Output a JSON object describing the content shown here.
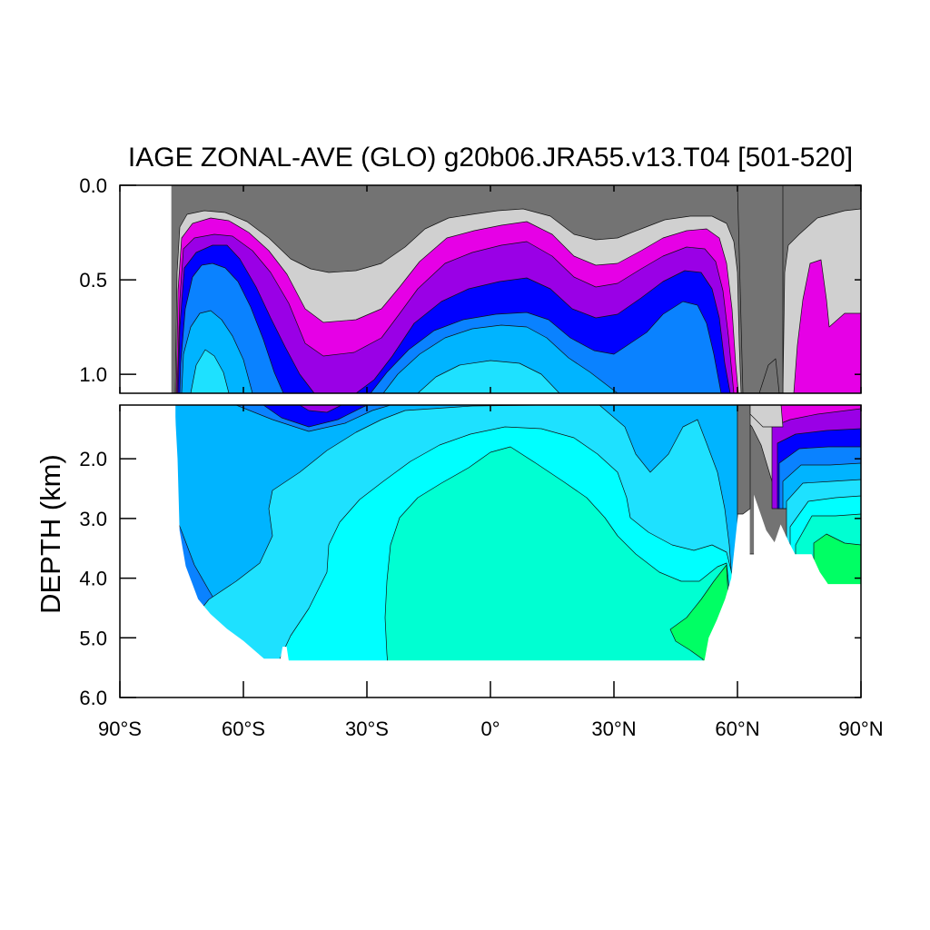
{
  "chart_data": {
    "type": "heatmap",
    "title": "IAGE ZONAL-AVE (GLO) g20b06.JRA55.v13.T04 [501-520]",
    "ylabel": "DEPTH (km)",
    "xlabel": "",
    "xlim": [
      -90,
      90
    ],
    "ylim_upper": [
      0.0,
      1.1
    ],
    "ylim_lower": [
      1.1,
      6.0
    ],
    "x_ticks": [
      {
        "value": -90,
        "label": "90°S"
      },
      {
        "value": -60,
        "label": "60°S"
      },
      {
        "value": -30,
        "label": "30°S"
      },
      {
        "value": 0,
        "label": "0°"
      },
      {
        "value": 30,
        "label": "30°N"
      },
      {
        "value": 60,
        "label": "60°N"
      },
      {
        "value": 90,
        "label": "90°N"
      }
    ],
    "y_ticks_upper": [
      {
        "value": 0.0,
        "label": "0.0"
      },
      {
        "value": 0.5,
        "label": "0.5"
      },
      {
        "value": 1.0,
        "label": "1.0"
      }
    ],
    "y_ticks_lower": [
      {
        "value": 2.0,
        "label": "2.0"
      },
      {
        "value": 3.0,
        "label": "3.0"
      },
      {
        "value": 4.0,
        "label": "4.0"
      },
      {
        "value": 5.0,
        "label": "5.0"
      },
      {
        "value": 6.0,
        "label": "6.0"
      }
    ],
    "levels": [
      {
        "color": "#737373"
      },
      {
        "color": "#d0d0d0"
      },
      {
        "color": "#e600e6"
      },
      {
        "color": "#9a00e6"
      },
      {
        "color": "#0000ff"
      },
      {
        "color": "#0a82ff"
      },
      {
        "color": "#00b4ff"
      },
      {
        "color": "#1ee1ff"
      },
      {
        "color": "#00ffff"
      },
      {
        "color": "#00ffd2"
      },
      {
        "color": "#00ff64"
      }
    ],
    "bottom_profile": [
      {
        "lat": -77,
        "depth": 0.7
      },
      {
        "lat": -76,
        "depth": 2.0
      },
      {
        "lat": -75.5,
        "depth": 3.2
      },
      {
        "lat": -74,
        "depth": 3.8
      },
      {
        "lat": -71,
        "depth": 4.35
      },
      {
        "lat": -68,
        "depth": 4.6
      },
      {
        "lat": -64,
        "depth": 4.85
      },
      {
        "lat": -60,
        "depth": 5.05
      },
      {
        "lat": -55,
        "depth": 5.35
      },
      {
        "lat": -51,
        "depth": 5.35
      },
      {
        "lat": -50.5,
        "depth": 5.15
      },
      {
        "lat": -49.5,
        "depth": 5.15
      },
      {
        "lat": -49,
        "depth": 5.38
      },
      {
        "lat": 0,
        "depth": 5.38
      },
      {
        "lat": 52,
        "depth": 5.38
      },
      {
        "lat": 53,
        "depth": 5.0
      },
      {
        "lat": 55,
        "depth": 4.7
      },
      {
        "lat": 57,
        "depth": 4.35
      },
      {
        "lat": 58.5,
        "depth": 4.0
      },
      {
        "lat": 59.5,
        "depth": 3.35
      },
      {
        "lat": 60.5,
        "depth": 2.7
      },
      {
        "lat": 61,
        "depth": 1.2
      }
    ],
    "arctic_bottom_profile": [
      {
        "lat": 64,
        "depth": 2.6
      },
      {
        "lat": 65.5,
        "depth": 2.9
      },
      {
        "lat": 67,
        "depth": 3.2
      },
      {
        "lat": 69,
        "depth": 3.4
      },
      {
        "lat": 70.5,
        "depth": 3.1
      },
      {
        "lat": 72.5,
        "depth": 3.4
      },
      {
        "lat": 74,
        "depth": 3.6
      },
      {
        "lat": 78,
        "depth": 3.6
      },
      {
        "lat": 80,
        "depth": 3.9
      },
      {
        "lat": 82,
        "depth": 4.1
      },
      {
        "lat": 90,
        "depth": 4.1
      }
    ]
  }
}
